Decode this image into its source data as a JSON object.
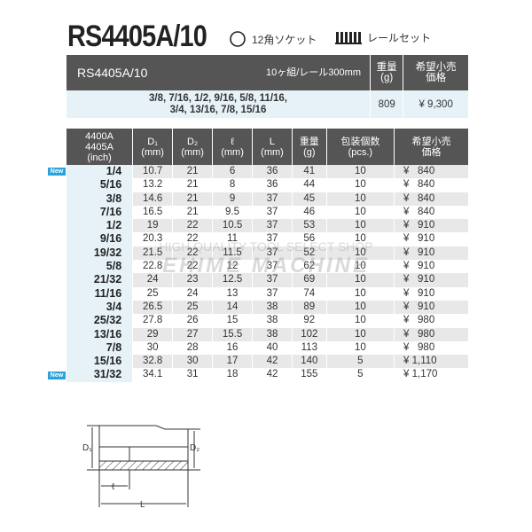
{
  "title": "RS4405A/10",
  "tags": [
    {
      "icon": "12-point-socket-icon",
      "label": "12角ソケット"
    },
    {
      "icon": "rail-set-icon",
      "label": "レールセット"
    }
  ],
  "set_table": {
    "headers": {
      "model": "RS4405A/10",
      "contents": "10ヶ組/レール300mm",
      "weight": "重量\n(g)",
      "price": "希望小売\n価格"
    },
    "sizes_line1": "3/8, 7/16, 1/2, 9/16, 5/8, 11/16,",
    "sizes_line2": "3/4, 13/16, 7/8, 15/16",
    "weight": "809",
    "price": "¥ 9,300"
  },
  "spec_table": {
    "headers": [
      "4400A\n4405A\n(inch)",
      "D₁\n(mm)",
      "D₂\n(mm)",
      "ℓ\n(mm)",
      "L\n(mm)",
      "重量\n(g)",
      "包装個数\n(pcs.)",
      "希望小売\n価格"
    ],
    "new_badge": "New",
    "rows": [
      [
        "1/4",
        "10.7",
        "21",
        "6",
        "36",
        "41",
        "10",
        "¥   840",
        true
      ],
      [
        "5/16",
        "13.2",
        "21",
        "8",
        "36",
        "44",
        "10",
        "¥   840",
        false
      ],
      [
        "3/8",
        "14.6",
        "21",
        "9",
        "37",
        "45",
        "10",
        "¥   840",
        false
      ],
      [
        "7/16",
        "16.5",
        "21",
        "9.5",
        "37",
        "46",
        "10",
        "¥   840",
        false
      ],
      [
        "1/2",
        "19",
        "22",
        "10.5",
        "37",
        "53",
        "10",
        "¥   910",
        false
      ],
      [
        "9/16",
        "20.3",
        "22",
        "11",
        "37",
        "56",
        "10",
        "¥   910",
        false
      ],
      [
        "19/32",
        "21.5",
        "22",
        "11.5",
        "37",
        "52",
        "10",
        "¥   910",
        false
      ],
      [
        "5/8",
        "22.8",
        "22",
        "12",
        "37",
        "62",
        "10",
        "¥   910",
        false
      ],
      [
        "21/32",
        "24",
        "23",
        "12.5",
        "37",
        "69",
        "10",
        "¥   910",
        false
      ],
      [
        "11/16",
        "25",
        "24",
        "13",
        "37",
        "74",
        "10",
        "¥   910",
        false
      ],
      [
        "3/4",
        "26.5",
        "25",
        "14",
        "38",
        "89",
        "10",
        "¥   910",
        false
      ],
      [
        "25/32",
        "27.8",
        "26",
        "15",
        "38",
        "92",
        "10",
        "¥   980",
        false
      ],
      [
        "13/16",
        "29",
        "27",
        "15.5",
        "38",
        "102",
        "10",
        "¥   980",
        false
      ],
      [
        "7/8",
        "30",
        "28",
        "16",
        "40",
        "113",
        "10",
        "¥   980",
        false
      ],
      [
        "15/16",
        "32.8",
        "30",
        "17",
        "42",
        "140",
        "5",
        "¥ 1,110",
        false
      ],
      [
        "31/32",
        "34.1",
        "31",
        "18",
        "42",
        "155",
        "5",
        "¥ 1,170",
        true
      ]
    ]
  },
  "diagram": {
    "d1": "D₁",
    "d2": "D₂",
    "l_small": "ℓ",
    "l_big": "L"
  },
  "watermark": {
    "line1": "HIGH QUALITY TOOL SELECT SHOP",
    "line2": "EHIME MACHINE"
  }
}
